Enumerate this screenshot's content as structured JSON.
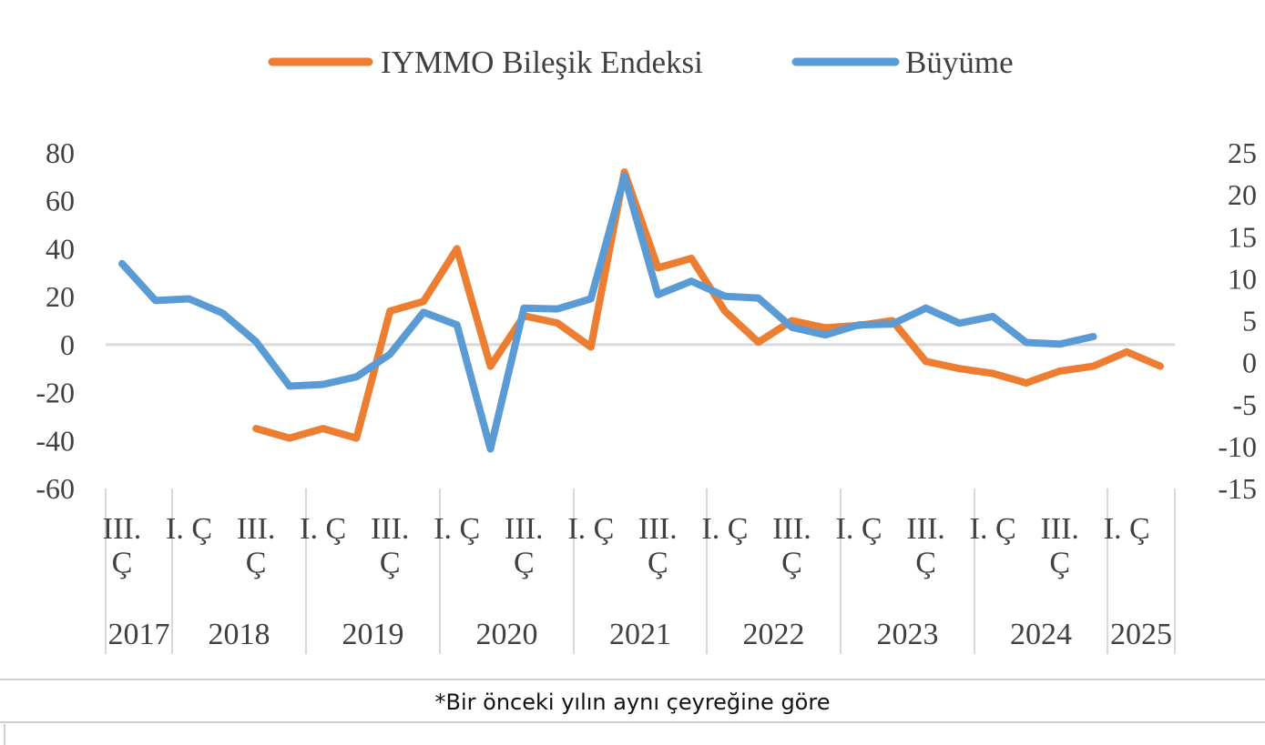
{
  "chart_data": {
    "type": "line",
    "title": "",
    "legend": {
      "placement": "top-center",
      "items": [
        {
          "name": "IYMMO Bileşik Endeksi",
          "color": "#ED7D31"
        },
        {
          "name": "Büyüme",
          "color": "#5B9BD5"
        }
      ]
    },
    "y_left": {
      "min": -60,
      "max": 80,
      "ticks": [
        "80",
        "60",
        "40",
        "20",
        "0",
        "-20",
        "-40",
        "-60"
      ]
    },
    "y_right": {
      "min": -15,
      "max": 25,
      "ticks": [
        "25",
        "20",
        "15",
        "10",
        "5",
        "0",
        "-5",
        "-10",
        "-15"
      ]
    },
    "quarter_labels": [
      "III.\nÇ",
      "I. Ç",
      "III.\nÇ",
      "I. Ç",
      "III.\nÇ",
      "I. Ç",
      "III.\nÇ",
      "I. Ç",
      "III.\nÇ",
      "I. Ç",
      "III.\nÇ",
      "I. Ç",
      "III.\nÇ",
      "I. Ç",
      "III.\nÇ",
      "I. Ç"
    ],
    "years": [
      "2017",
      "2018",
      "2019",
      "2020",
      "2021",
      "2022",
      "2023",
      "2024",
      "2025"
    ],
    "x_periods": [
      "2017-III",
      "2017-IV",
      "2018-I",
      "2018-II",
      "2018-III",
      "2018-IV",
      "2019-I",
      "2019-II",
      "2019-III",
      "2019-IV",
      "2020-I",
      "2020-II",
      "2020-III",
      "2020-IV",
      "2021-I",
      "2021-II",
      "2021-III",
      "2021-IV",
      "2022-I",
      "2022-II",
      "2022-III",
      "2022-IV",
      "2023-I",
      "2023-II",
      "2023-III",
      "2023-IV",
      "2024-I",
      "2024-II",
      "2024-III",
      "2024-IV",
      "2025-I",
      "2025-II"
    ],
    "series": [
      {
        "name": "IYMMO Bileşik Endeksi",
        "axis": "left",
        "color": "#ED7D31",
        "values": [
          null,
          null,
          null,
          null,
          -35,
          -39,
          -35,
          -39,
          14,
          18,
          40,
          -9,
          12,
          9,
          -1,
          72,
          32,
          36,
          14,
          1,
          10,
          7,
          8,
          10,
          -7,
          -10,
          -12,
          -16,
          -11,
          -9,
          -3,
          -9
        ]
      },
      {
        "name": "Büyüme",
        "axis": "right",
        "color": "#5B9BD5",
        "values": [
          11.8,
          7.4,
          7.6,
          5.9,
          2.5,
          -2.8,
          -2.6,
          -1.7,
          1.0,
          6.0,
          4.5,
          -10.3,
          6.5,
          6.4,
          7.6,
          22.2,
          8.1,
          9.7,
          7.9,
          7.7,
          4.2,
          3.3,
          4.5,
          4.6,
          6.5,
          4.7,
          5.5,
          2.4,
          2.2,
          3.1,
          null,
          null
        ]
      }
    ],
    "grid": false
  },
  "footnote": "*Bir önceki yılın aynı çeyreğine göre"
}
